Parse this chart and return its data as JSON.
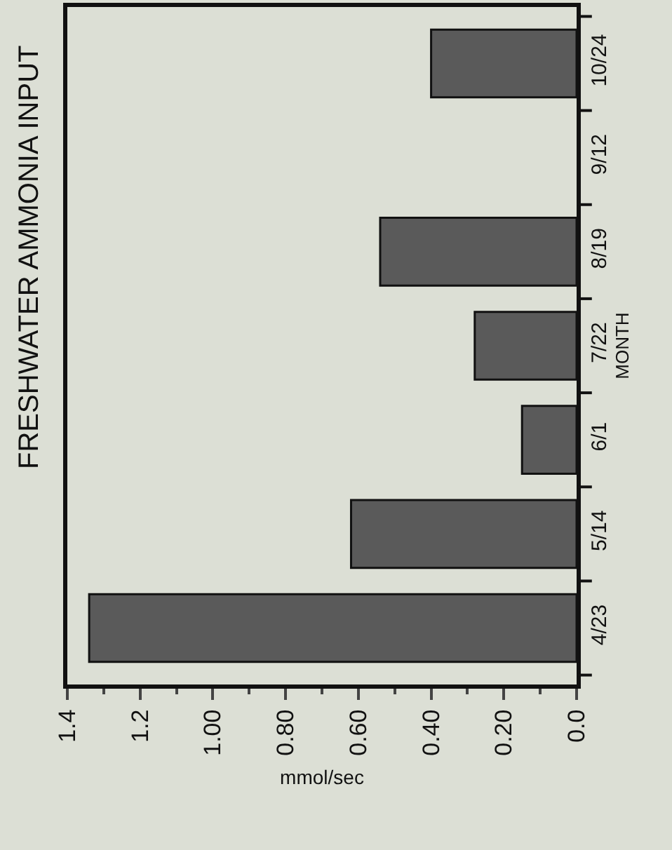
{
  "chart_data": {
    "type": "bar",
    "orientation": "horizontal",
    "title": "FRESHWATER AMMONIA INPUT",
    "xlabel": "mmol/sec",
    "ylabel": "MONTH",
    "categories": [
      "10/24",
      "9/12",
      "8/19",
      "7/22",
      "6/1",
      "5/14",
      "4/23"
    ],
    "values": [
      0.4,
      0,
      0.54,
      0.28,
      0.15,
      0.62,
      1.34
    ],
    "color": "#5a5a5a",
    "xlim": [
      1.4,
      0
    ],
    "xticks": [
      {
        "value": 1.4,
        "label": "1.4"
      },
      {
        "value": 1.2,
        "label": "1.2"
      },
      {
        "value": 1,
        "label": "1.00"
      },
      {
        "value": 0.8,
        "label": "0.80"
      },
      {
        "value": 0.6,
        "label": "0.60"
      },
      {
        "value": 0.4,
        "label": "0.40"
      },
      {
        "value": 0.2,
        "label": "0.20"
      },
      {
        "value": 0,
        "label": "0.0"
      }
    ],
    "grid": false,
    "legend": false
  }
}
